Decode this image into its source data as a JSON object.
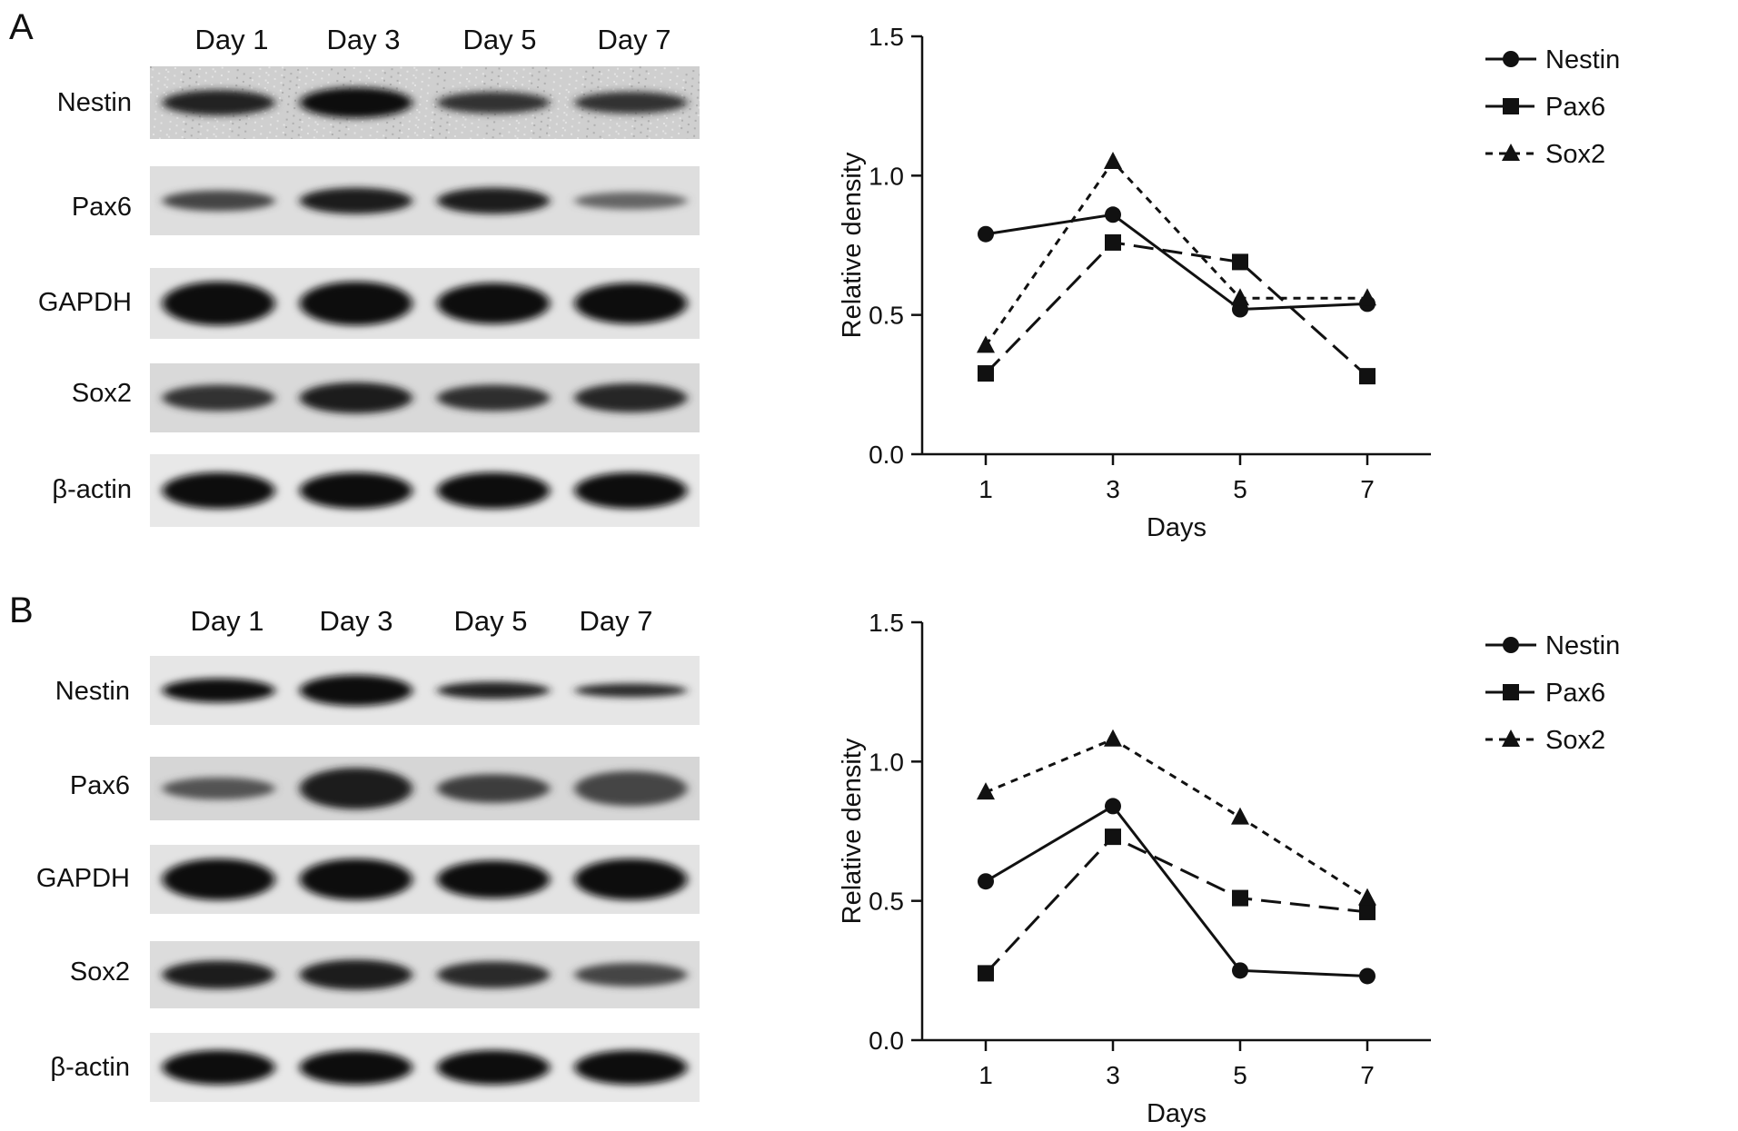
{
  "panels": [
    {
      "letter": "A",
      "lanes": [
        "Day 1",
        "Day 3",
        "Day 5",
        "Day 7"
      ],
      "blots": [
        {
          "label": "Nestin",
          "intensity": [
            0.8,
            0.95,
            0.7,
            0.7
          ],
          "thickness": [
            0.35,
            0.42,
            0.3,
            0.3
          ],
          "background": "#cfcfcf",
          "noisy": true
        },
        {
          "label": "Pax6",
          "intensity": [
            0.55,
            0.85,
            0.85,
            0.3
          ],
          "thickness": [
            0.3,
            0.38,
            0.38,
            0.25
          ],
          "background": "#dedede",
          "noisy": false
        },
        {
          "label": "GAPDH",
          "intensity": [
            1.0,
            1.0,
            1.0,
            1.0
          ],
          "thickness": [
            0.62,
            0.62,
            0.58,
            0.58
          ],
          "background": "#e3e3e3",
          "noisy": false
        },
        {
          "label": "Sox2",
          "intensity": [
            0.7,
            0.85,
            0.72,
            0.78
          ],
          "thickness": [
            0.38,
            0.45,
            0.38,
            0.42
          ],
          "background": "#d9d9d9",
          "noisy": false
        },
        {
          "label": "β-actin",
          "intensity": [
            1.0,
            1.0,
            1.0,
            1.0
          ],
          "thickness": [
            0.5,
            0.5,
            0.5,
            0.5
          ],
          "background": "#e8e8e8",
          "noisy": false
        }
      ]
    },
    {
      "letter": "B",
      "lanes": [
        "Day 1",
        "Day 3",
        "Day 5",
        "Day 7"
      ],
      "blots": [
        {
          "label": "Nestin",
          "intensity": [
            0.95,
            1.0,
            0.8,
            0.75
          ],
          "thickness": [
            0.35,
            0.45,
            0.25,
            0.2
          ],
          "background": "#e6e6e6",
          "noisy": false
        },
        {
          "label": "Pax6",
          "intensity": [
            0.45,
            0.85,
            0.6,
            0.55
          ],
          "thickness": [
            0.35,
            0.65,
            0.45,
            0.55
          ],
          "background": "#d6d6d6",
          "noisy": false
        },
        {
          "label": "GAPDH",
          "intensity": [
            1.0,
            1.0,
            0.95,
            1.0
          ],
          "thickness": [
            0.6,
            0.6,
            0.55,
            0.6
          ],
          "background": "#e3e3e3",
          "noisy": false
        },
        {
          "label": "Sox2",
          "intensity": [
            0.85,
            0.85,
            0.75,
            0.55
          ],
          "thickness": [
            0.42,
            0.45,
            0.4,
            0.35
          ],
          "background": "#dcdcdc",
          "noisy": false
        },
        {
          "label": "β-actin",
          "intensity": [
            1.0,
            1.0,
            1.0,
            1.0
          ],
          "thickness": [
            0.5,
            0.5,
            0.5,
            0.5
          ],
          "background": "#e8e8e8",
          "noisy": false
        }
      ]
    }
  ],
  "chart_data": [
    {
      "type": "line",
      "title": "",
      "xlabel": "Days",
      "ylabel": "Relative density",
      "x": [
        1,
        3,
        5,
        7
      ],
      "xticks": [
        "1",
        "3",
        "5",
        "7"
      ],
      "yticks": [
        "0.0",
        "0.5",
        "1.0",
        "1.5"
      ],
      "ylim": [
        0,
        1.5
      ],
      "xlim": [
        0,
        8
      ],
      "grid": false,
      "legend": "top-right",
      "series": [
        {
          "name": "Nestin",
          "values": [
            0.79,
            0.86,
            0.52,
            0.54
          ],
          "marker": "circle",
          "dash": "solid"
        },
        {
          "name": "Pax6",
          "values": [
            0.29,
            0.76,
            0.69,
            0.28
          ],
          "marker": "square",
          "dash": "dashed"
        },
        {
          "name": "Sox2",
          "values": [
            0.39,
            1.05,
            0.56,
            0.56
          ],
          "marker": "triangle",
          "dash": "dotted"
        }
      ]
    },
    {
      "type": "line",
      "title": "",
      "xlabel": "Days",
      "ylabel": "Relative density",
      "x": [
        1,
        3,
        5,
        7
      ],
      "xticks": [
        "1",
        "3",
        "5",
        "7"
      ],
      "yticks": [
        "0.0",
        "0.5",
        "1.0",
        "1.5"
      ],
      "ylim": [
        0,
        1.5
      ],
      "xlim": [
        0,
        8
      ],
      "grid": false,
      "legend": "top-right",
      "series": [
        {
          "name": "Nestin",
          "values": [
            0.57,
            0.84,
            0.25,
            0.23
          ],
          "marker": "circle",
          "dash": "solid"
        },
        {
          "name": "Pax6",
          "values": [
            0.24,
            0.73,
            0.51,
            0.46
          ],
          "marker": "square",
          "dash": "dashed"
        },
        {
          "name": "Sox2",
          "values": [
            0.89,
            1.08,
            0.8,
            0.51
          ],
          "marker": "triangle",
          "dash": "dotted"
        }
      ]
    }
  ]
}
